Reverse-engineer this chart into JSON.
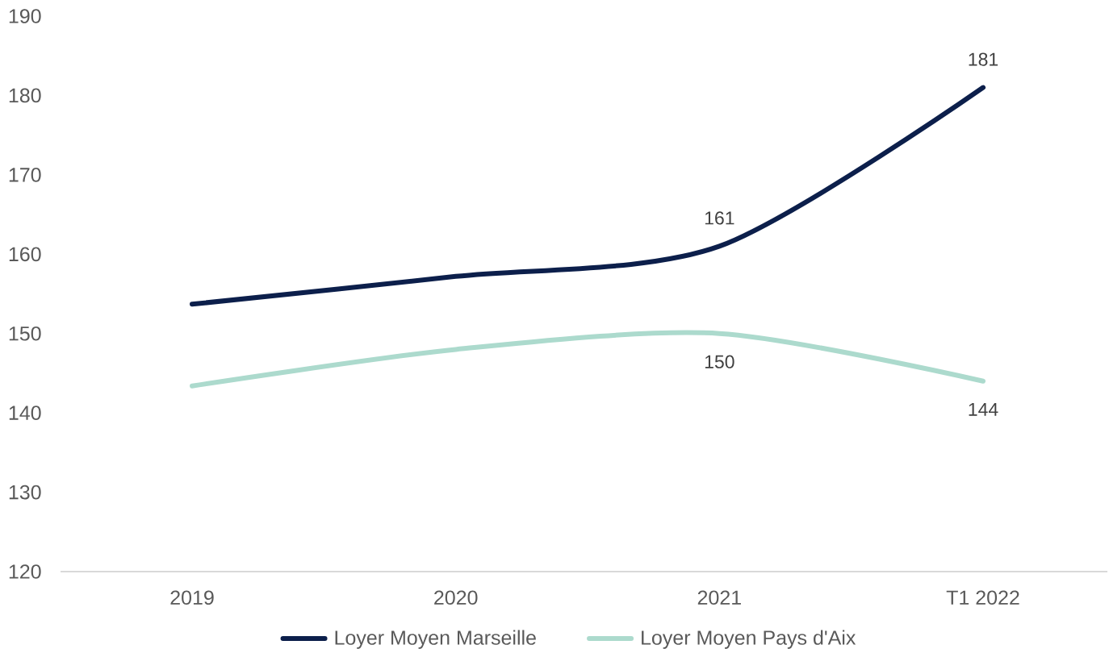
{
  "chart_data": {
    "type": "line",
    "categories": [
      "2019",
      "2020",
      "2021",
      "T1 2022"
    ],
    "series": [
      {
        "name": "Loyer Moyen Marseille",
        "color": "#0c1f4b",
        "values": [
          153.7,
          157.2,
          161,
          181
        ],
        "value_labels": [
          null,
          null,
          "161",
          "181"
        ]
      },
      {
        "name": "Loyer Moyen Pays d'Aix",
        "color": "#acdacd",
        "values": [
          143.4,
          148,
          150,
          144
        ],
        "value_labels": [
          null,
          null,
          "150",
          "144"
        ]
      }
    ],
    "ylim": [
      120,
      190
    ],
    "yticks": [
      120,
      130,
      140,
      150,
      160,
      170,
      180,
      190
    ],
    "legend": "bottom",
    "marker": "none",
    "line_style": "solid"
  }
}
